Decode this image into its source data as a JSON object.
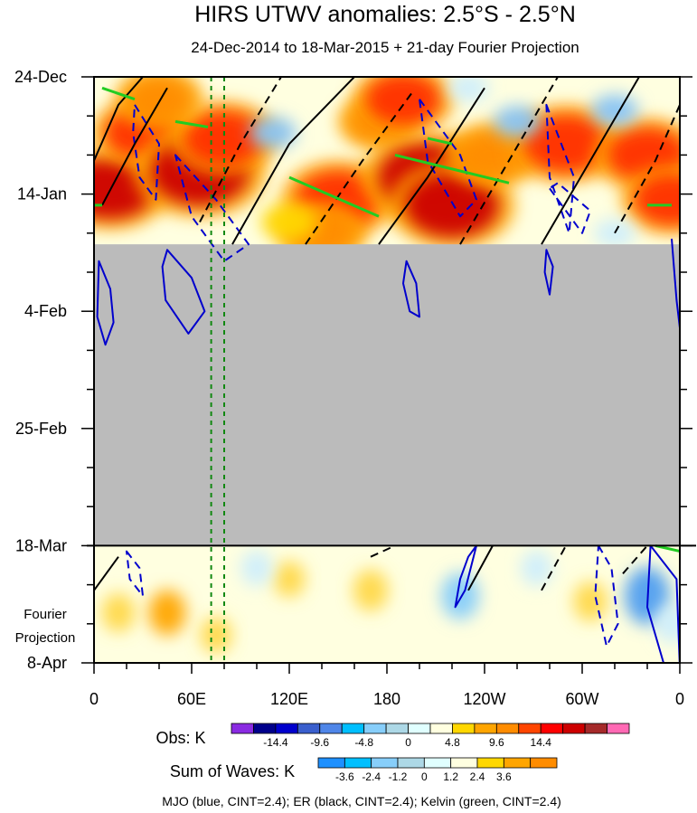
{
  "chart_data": {
    "type": "heatmap",
    "title": "HIRS UTWV anomalies: 2.5°S - 2.5°N",
    "subtitle": "24-Dec-2014 to 18-Mar-2015 + 21-day Fourier Projection",
    "x_ticks": [
      "0",
      "60E",
      "120E",
      "180",
      "120W",
      "60W",
      "0"
    ],
    "x_tick_lon": [
      0,
      60,
      120,
      180,
      240,
      300,
      360
    ],
    "y_ticks": [
      "24-Dec",
      "14-Jan",
      "4-Feb",
      "25-Feb",
      "18-Mar",
      "8-Apr"
    ],
    "y_tick_day": [
      0,
      21,
      42,
      63,
      84,
      105
    ],
    "xlim": [
      0,
      360
    ],
    "ylim_days": [
      0,
      105
    ],
    "fourier_label_line1": "Fourier",
    "fourier_label_line2": "Projection",
    "obs_end_day": 84,
    "missing_data_start_day": 30,
    "obs_colorbar": {
      "label": "Obs: K",
      "tick_labels": [
        "-14.4",
        "-9.6",
        "-4.8",
        "0",
        "4.8",
        "9.6",
        "14.4"
      ],
      "colors": [
        "#8a2be2",
        "#00008b",
        "#0000cd",
        "#3a5fcd",
        "#4f86e8",
        "#00bfff",
        "#87cefa",
        "#add8e6",
        "#e0ffff",
        "#ffffe0",
        "#ffd700",
        "#ffa500",
        "#ff8c00",
        "#ff4500",
        "#ff0000",
        "#cd0000",
        "#a52a2a",
        "#ff69b4"
      ]
    },
    "waves_colorbar": {
      "label": "Sum of Waves: K",
      "tick_labels": [
        "-3.6",
        "-2.4",
        "-1.2",
        "0",
        "1.2",
        "2.4",
        "3.6"
      ],
      "colors": [
        "#1e90ff",
        "#00bfff",
        "#87cefa",
        "#add8e6",
        "#e0ffff",
        "#ffffe0",
        "#ffd700",
        "#ffa500",
        "#ff8c00"
      ]
    },
    "guide_lines_lon": [
      72,
      80
    ],
    "caption": "MJO (blue, CINT=2.4); ER (black, CINT=2.4); Kelvin (green, CINT=2.4)",
    "anomaly_blobs": [
      {
        "lon": 10,
        "day": 20,
        "value": 12
      },
      {
        "lon": 30,
        "day": 10,
        "value": 9
      },
      {
        "lon": 65,
        "day": 17,
        "value": 14
      },
      {
        "lon": 80,
        "day": 11,
        "value": 10
      },
      {
        "lon": 40,
        "day": 4,
        "value": 7
      },
      {
        "lon": 150,
        "day": 22,
        "value": 11
      },
      {
        "lon": 140,
        "day": 28,
        "value": 7
      },
      {
        "lon": 175,
        "day": 8,
        "value": 6
      },
      {
        "lon": 205,
        "day": 18,
        "value": 14
      },
      {
        "lon": 220,
        "day": 23,
        "value": 13
      },
      {
        "lon": 190,
        "day": 4,
        "value": 9
      },
      {
        "lon": 245,
        "day": 14,
        "value": 8
      },
      {
        "lon": 290,
        "day": 12,
        "value": 11
      },
      {
        "lon": 340,
        "day": 14,
        "value": 10
      },
      {
        "lon": 355,
        "day": 22,
        "value": 9
      },
      {
        "lon": 110,
        "day": 10,
        "value": -3
      },
      {
        "lon": 260,
        "day": 8,
        "value": -3
      },
      {
        "lon": 230,
        "day": 2,
        "value": -2
      },
      {
        "lon": 320,
        "day": 6,
        "value": -3
      },
      {
        "lon": 320,
        "day": 28,
        "value": -2
      },
      {
        "lon": 120,
        "day": 26,
        "value": 5
      },
      {
        "lon": 15,
        "day": 96,
        "value": 1.5
      },
      {
        "lon": 45,
        "day": 96,
        "value": 2.2
      },
      {
        "lon": 75,
        "day": 100,
        "value": 1.2
      },
      {
        "lon": 120,
        "day": 90,
        "value": 1.2
      },
      {
        "lon": 170,
        "day": 92,
        "value": 1.8
      },
      {
        "lon": 225,
        "day": 93,
        "value": -2.4
      },
      {
        "lon": 305,
        "day": 94,
        "value": 1.6
      },
      {
        "lon": 340,
        "day": 93,
        "value": -3.6
      },
      {
        "lon": 272,
        "day": 88,
        "value": -1.2
      },
      {
        "lon": 100,
        "day": 88,
        "value": -1.2
      },
      {
        "lon": 355,
        "day": 98,
        "value": -1.5
      }
    ],
    "wave_contours": [
      {
        "wave": "MJO",
        "color": "#0000cd",
        "dashed": false,
        "points": [
          [
            3,
            33
          ],
          [
            10,
            38
          ],
          [
            12,
            44
          ],
          [
            7,
            48
          ],
          [
            2,
            43
          ]
        ]
      },
      {
        "wave": "MJO",
        "color": "#0000cd",
        "dashed": false,
        "points": [
          [
            45,
            31
          ],
          [
            60,
            36
          ],
          [
            68,
            42
          ],
          [
            58,
            46
          ],
          [
            44,
            40
          ],
          [
            42,
            34
          ]
        ]
      },
      {
        "wave": "MJO",
        "color": "#0000cd",
        "dashed": false,
        "points": [
          [
            192,
            33
          ],
          [
            198,
            37
          ],
          [
            200,
            43
          ],
          [
            194,
            42
          ],
          [
            190,
            37
          ]
        ]
      },
      {
        "wave": "MJO",
        "color": "#0000cd",
        "dashed": false,
        "points": [
          [
            278,
            31
          ],
          [
            282,
            34
          ],
          [
            280,
            39
          ],
          [
            277,
            35
          ]
        ]
      },
      {
        "wave": "MJO",
        "color": "#0000cd",
        "dashed": false,
        "points": [
          [
            355,
            29
          ],
          [
            358,
            40
          ],
          [
            360,
            45
          ]
        ]
      },
      {
        "wave": "MJO",
        "color": "#0000cd",
        "dashed": true,
        "points": [
          [
            25,
            5
          ],
          [
            40,
            12
          ],
          [
            38,
            22
          ],
          [
            28,
            18
          ],
          [
            24,
            10
          ]
        ]
      },
      {
        "wave": "MJO",
        "color": "#0000cd",
        "dashed": true,
        "points": [
          [
            50,
            14
          ],
          [
            75,
            22
          ],
          [
            95,
            30
          ],
          [
            80,
            33
          ],
          [
            60,
            25
          ]
        ]
      },
      {
        "wave": "MJO",
        "color": "#0000cd",
        "dashed": true,
        "points": [
          [
            200,
            4
          ],
          [
            225,
            14
          ],
          [
            235,
            22
          ],
          [
            225,
            25
          ],
          [
            205,
            15
          ]
        ]
      },
      {
        "wave": "MJO",
        "color": "#0000cd",
        "dashed": true,
        "points": [
          [
            278,
            5
          ],
          [
            295,
            18
          ],
          [
            292,
            28
          ],
          [
            280,
            18
          ]
        ]
      },
      {
        "wave": "MJO",
        "color": "#0000cd",
        "dashed": true,
        "points": [
          [
            280,
            20
          ],
          [
            300,
            28
          ],
          [
            305,
            24
          ],
          [
            285,
            19
          ]
        ]
      },
      {
        "wave": "MJO",
        "color": "#0000cd",
        "dashed": false,
        "points": [
          [
            225,
            90
          ],
          [
            230,
            86
          ],
          [
            235,
            84
          ],
          [
            228,
            92
          ],
          [
            222,
            95
          ]
        ]
      },
      {
        "wave": "MJO",
        "color": "#0000cd",
        "dashed": true,
        "points": [
          [
            310,
            84
          ],
          [
            318,
            88
          ],
          [
            322,
            98
          ],
          [
            315,
            102
          ],
          [
            308,
            93
          ]
        ]
      },
      {
        "wave": "MJO",
        "color": "#0000cd",
        "dashed": false,
        "points": [
          [
            342,
            84
          ],
          [
            358,
            90
          ],
          [
            360,
            106
          ],
          [
            350,
            105
          ],
          [
            340,
            95
          ]
        ]
      },
      {
        "wave": "MJO",
        "color": "#0000cd",
        "dashed": true,
        "points": [
          [
            20,
            85
          ],
          [
            28,
            88
          ],
          [
            30,
            93
          ],
          [
            22,
            90
          ]
        ]
      },
      {
        "wave": "ER",
        "color": "#000000",
        "dashed": false,
        "points": [
          [
            0,
            15
          ],
          [
            15,
            5
          ],
          [
            30,
            0
          ]
        ]
      },
      {
        "wave": "ER",
        "color": "#000000",
        "dashed": false,
        "points": [
          [
            5,
            23
          ],
          [
            25,
            12
          ],
          [
            45,
            2
          ]
        ]
      },
      {
        "wave": "ER",
        "color": "#000000",
        "dashed": true,
        "points": [
          [
            65,
            26
          ],
          [
            90,
            12
          ],
          [
            115,
            0
          ]
        ]
      },
      {
        "wave": "ER",
        "color": "#000000",
        "dashed": false,
        "points": [
          [
            85,
            30
          ],
          [
            120,
            12
          ],
          [
            160,
            0
          ]
        ]
      },
      {
        "wave": "ER",
        "color": "#000000",
        "dashed": true,
        "points": [
          [
            130,
            30
          ],
          [
            165,
            15
          ],
          [
            195,
            3
          ]
        ]
      },
      {
        "wave": "ER",
        "color": "#000000",
        "dashed": false,
        "points": [
          [
            175,
            30
          ],
          [
            205,
            18
          ],
          [
            240,
            2
          ]
        ]
      },
      {
        "wave": "ER",
        "color": "#000000",
        "dashed": true,
        "points": [
          [
            225,
            30
          ],
          [
            255,
            15
          ],
          [
            285,
            0
          ]
        ]
      },
      {
        "wave": "ER",
        "color": "#000000",
        "dashed": false,
        "points": [
          [
            275,
            30
          ],
          [
            305,
            15
          ],
          [
            335,
            0
          ]
        ]
      },
      {
        "wave": "ER",
        "color": "#000000",
        "dashed": true,
        "points": [
          [
            320,
            28
          ],
          [
            345,
            15
          ],
          [
            360,
            5
          ]
        ]
      },
      {
        "wave": "ER",
        "color": "#000000",
        "dashed": false,
        "points": [
          [
            0,
            92
          ],
          [
            15,
            86
          ]
        ]
      },
      {
        "wave": "ER",
        "color": "#000000",
        "dashed": true,
        "points": [
          [
            170,
            86
          ],
          [
            185,
            84
          ]
        ]
      },
      {
        "wave": "ER",
        "color": "#000000",
        "dashed": false,
        "points": [
          [
            230,
            92
          ],
          [
            245,
            84
          ]
        ]
      },
      {
        "wave": "ER",
        "color": "#000000",
        "dashed": true,
        "points": [
          [
            275,
            92
          ],
          [
            290,
            84
          ]
        ]
      },
      {
        "wave": "ER",
        "color": "#000000",
        "dashed": true,
        "points": [
          [
            325,
            89
          ],
          [
            340,
            84
          ]
        ]
      },
      {
        "wave": "Kelvin",
        "color": "#22cc22",
        "dashed": false,
        "points": [
          [
            5,
            2
          ],
          [
            25,
            4
          ]
        ]
      },
      {
        "wave": "Kelvin",
        "color": "#22cc22",
        "dashed": false,
        "points": [
          [
            50,
            8
          ],
          [
            70,
            9
          ]
        ]
      },
      {
        "wave": "Kelvin",
        "color": "#22cc22",
        "dashed": false,
        "points": [
          [
            120,
            18
          ],
          [
            175,
            25
          ]
        ]
      },
      {
        "wave": "Kelvin",
        "color": "#22cc22",
        "dashed": false,
        "points": [
          [
            185,
            14
          ],
          [
            255,
            19
          ]
        ]
      },
      {
        "wave": "Kelvin",
        "color": "#22cc22",
        "dashed": false,
        "points": [
          [
            205,
            11
          ],
          [
            220,
            12
          ]
        ]
      },
      {
        "wave": "Kelvin",
        "color": "#22cc22",
        "dashed": false,
        "points": [
          [
            0,
            23
          ],
          [
            5,
            23
          ]
        ]
      },
      {
        "wave": "Kelvin",
        "color": "#22cc22",
        "dashed": false,
        "points": [
          [
            340,
            23
          ],
          [
            355,
            23
          ]
        ]
      },
      {
        "wave": "Kelvin",
        "color": "#22cc22",
        "dashed": false,
        "points": [
          [
            345,
            84
          ],
          [
            360,
            85
          ]
        ]
      }
    ]
  }
}
